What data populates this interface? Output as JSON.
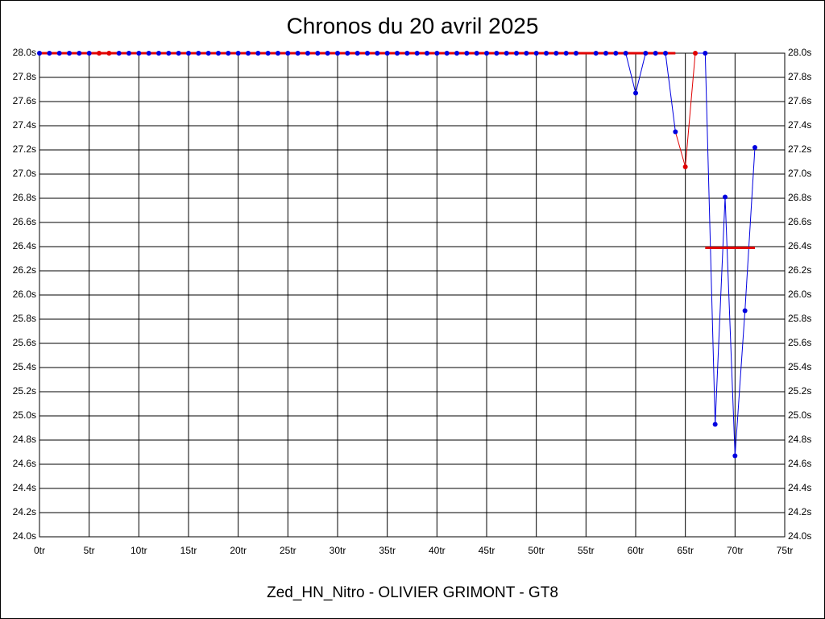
{
  "chart_data": {
    "type": "line",
    "title": "Chronos du 20 avril 2025",
    "xlabel": "Zed_HN_Nitro - OLIVIER GRIMONT - GT8",
    "x": [
      0,
      1,
      2,
      3,
      4,
      5,
      6,
      7,
      8,
      9,
      10,
      11,
      12,
      13,
      14,
      15,
      16,
      17,
      18,
      19,
      20,
      21,
      22,
      23,
      24,
      25,
      26,
      27,
      28,
      29,
      30,
      31,
      32,
      33,
      34,
      35,
      36,
      37,
      38,
      39,
      40,
      41,
      42,
      43,
      44,
      45,
      46,
      47,
      48,
      49,
      50,
      51,
      52,
      53,
      54,
      55,
      56,
      57,
      58,
      59,
      60,
      61,
      62,
      63,
      64,
      65,
      66,
      67,
      68,
      69,
      70,
      71,
      72
    ],
    "series": [
      {
        "color": "#0000e0",
        "values": [
          28.0,
          28.0,
          28.0,
          28.0,
          28.0,
          28.0,
          28.0,
          28.0,
          28.0,
          28.0,
          28.0,
          28.0,
          28.0,
          28.0,
          28.0,
          28.0,
          28.0,
          28.0,
          28.0,
          28.0,
          28.0,
          28.0,
          28.0,
          28.0,
          28.0,
          28.0,
          28.0,
          28.0,
          28.0,
          28.0,
          28.0,
          28.0,
          28.0,
          28.0,
          28.0,
          28.0,
          28.0,
          28.0,
          28.0,
          28.0,
          28.0,
          28.0,
          28.0,
          28.0,
          28.0,
          28.0,
          28.0,
          28.0,
          28.0,
          28.0,
          28.0,
          28.0,
          28.0,
          28.0,
          28.0,
          null,
          28.0,
          28.0,
          28.0,
          28.0,
          27.67,
          28.0,
          28.0,
          28.0,
          27.35,
          27.06,
          28.0,
          28.0,
          24.93,
          26.81,
          24.67,
          25.87,
          27.22
        ],
        "point_colors": [
          "#0000e0",
          "#0000e0",
          "#0000e0",
          "#0000e0",
          "#0000e0",
          "#0000e0",
          "#e00000",
          "#e00000",
          "#0000e0",
          "#0000e0",
          "#0000e0",
          "#0000e0",
          "#0000e0",
          "#0000e0",
          "#0000e0",
          "#0000e0",
          "#0000e0",
          "#0000e0",
          "#0000e0",
          "#0000e0",
          "#0000e0",
          "#0000e0",
          "#0000e0",
          "#0000e0",
          "#0000e0",
          "#0000e0",
          "#0000e0",
          "#0000e0",
          "#0000e0",
          "#0000e0",
          "#0000e0",
          "#0000e0",
          "#0000e0",
          "#0000e0",
          "#0000e0",
          "#0000e0",
          "#0000e0",
          "#0000e0",
          "#0000e0",
          "#0000e0",
          "#0000e0",
          "#0000e0",
          "#0000e0",
          "#0000e0",
          "#0000e0",
          "#0000e0",
          "#0000e0",
          "#0000e0",
          "#0000e0",
          "#0000e0",
          "#0000e0",
          "#0000e0",
          "#0000e0",
          "#0000e0",
          "#0000e0",
          "#0000e0",
          "#0000e0",
          "#0000e0",
          "#0000e0",
          "#0000e0",
          "#0000e0",
          "#0000e0",
          "#0000e0",
          "#0000e0",
          "#0000e0",
          "#e00000",
          "#e00000",
          "#0000e0",
          "#0000e0",
          "#0000e0",
          "#0000e0",
          "#0000e0",
          "#0000e0"
        ]
      }
    ],
    "reference_lines": [
      {
        "x": [
          0,
          64
        ],
        "value": 28.0,
        "color": "#e00000"
      },
      {
        "x": [
          67,
          72
        ],
        "value": 26.39,
        "color": "#e00000"
      }
    ],
    "xlim": [
      0,
      75
    ],
    "xticks": [
      {
        "value": 0,
        "label": "0tr"
      },
      {
        "value": 5,
        "label": "5tr"
      },
      {
        "value": 10,
        "label": "10tr"
      },
      {
        "value": 15,
        "label": "15tr"
      },
      {
        "value": 20,
        "label": "20tr"
      },
      {
        "value": 25,
        "label": "25tr"
      },
      {
        "value": 30,
        "label": "30tr"
      },
      {
        "value": 35,
        "label": "35tr"
      },
      {
        "value": 40,
        "label": "40tr"
      },
      {
        "value": 45,
        "label": "45tr"
      },
      {
        "value": 50,
        "label": "50tr"
      },
      {
        "value": 55,
        "label": "55tr"
      },
      {
        "value": 60,
        "label": "60tr"
      },
      {
        "value": 65,
        "label": "65tr"
      },
      {
        "value": 70,
        "label": "70tr"
      },
      {
        "value": 75,
        "label": "75tr"
      }
    ],
    "ylim": [
      24.0,
      28.0
    ],
    "yticks": [
      {
        "value": 24.0,
        "label": "24.0s"
      },
      {
        "value": 24.2,
        "label": "24.2s"
      },
      {
        "value": 24.4,
        "label": "24.4s"
      },
      {
        "value": 24.6,
        "label": "24.6s"
      },
      {
        "value": 24.8,
        "label": "24.8s"
      },
      {
        "value": 25.0,
        "label": "25.0s"
      },
      {
        "value": 25.2,
        "label": "25.2s"
      },
      {
        "value": 25.4,
        "label": "25.4s"
      },
      {
        "value": 25.6,
        "label": "25.6s"
      },
      {
        "value": 25.8,
        "label": "25.8s"
      },
      {
        "value": 26.0,
        "label": "26.0s"
      },
      {
        "value": 26.2,
        "label": "26.2s"
      },
      {
        "value": 26.4,
        "label": "26.4s"
      },
      {
        "value": 26.6,
        "label": "26.6s"
      },
      {
        "value": 26.8,
        "label": "26.8s"
      },
      {
        "value": 27.0,
        "label": "27.0s"
      },
      {
        "value": 27.2,
        "label": "27.2s"
      },
      {
        "value": 27.4,
        "label": "27.4s"
      },
      {
        "value": 27.6,
        "label": "27.6s"
      },
      {
        "value": 27.8,
        "label": "27.8s"
      },
      {
        "value": 28.0,
        "label": "28.0s"
      }
    ],
    "grid": true
  }
}
